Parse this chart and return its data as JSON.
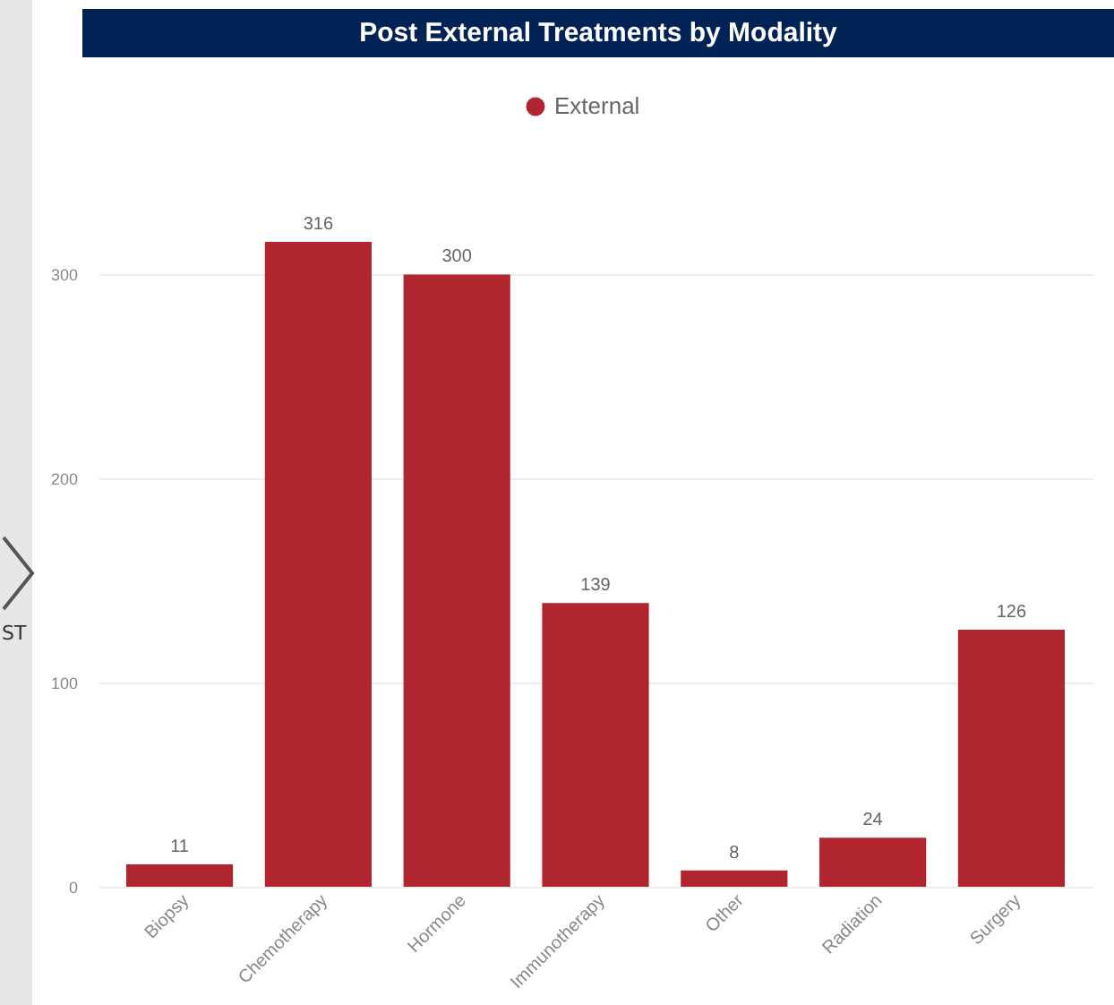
{
  "chart_data": {
    "type": "bar",
    "title": "Post External Treatments by Modality",
    "categories": [
      "Biopsy",
      "Chemotherapy",
      "Hormone",
      "Immunotherapy",
      "Other",
      "Radiation",
      "Surgery"
    ],
    "series": [
      {
        "name": "External",
        "color": "#b0252e",
        "values": [
          11,
          316,
          300,
          139,
          8,
          24,
          126
        ]
      }
    ],
    "ylim": [
      0,
      316
    ],
    "yticks": [
      0,
      100,
      200,
      300
    ],
    "grid": "y",
    "legend": "top",
    "data_labels": true,
    "annotations": [
      "ST"
    ]
  }
}
